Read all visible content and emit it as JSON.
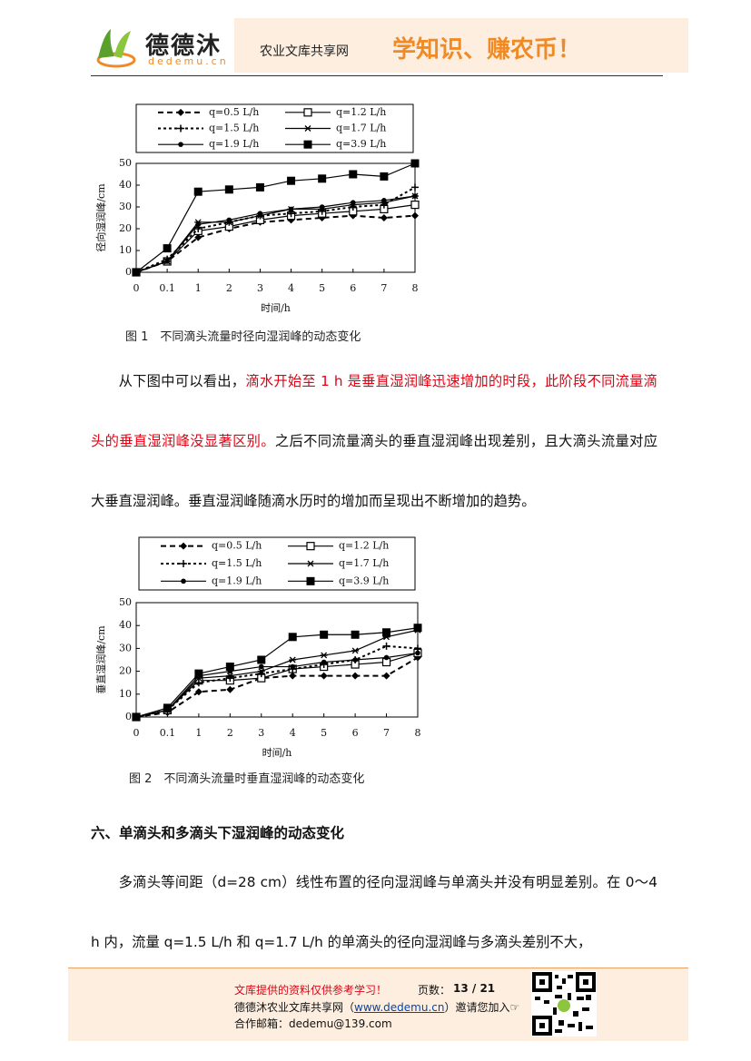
{
  "header": {
    "logo_text": "德德沐",
    "logo_domain": "dedemu.cn",
    "site_name": "农业文库共享网",
    "slogan": "学知识、赚农币！"
  },
  "chart_data": [
    {
      "type": "line",
      "y_label": "径向湿润峰/cm",
      "x_label": "时间/h",
      "categories": [
        "0",
        "0.1",
        "1",
        "2",
        "3",
        "4",
        "5",
        "6",
        "7",
        "8"
      ],
      "ylim": [
        0,
        50
      ],
      "yticks": [
        0,
        10,
        20,
        30,
        40,
        50
      ],
      "series": [
        {
          "name": "q=0.5 L/h",
          "color": "#000000",
          "dash": "dashed",
          "marker": "diamond",
          "values": [
            0,
            5,
            16,
            20,
            23,
            24,
            25,
            26,
            25,
            26
          ]
        },
        {
          "name": "q=1.2 L/h",
          "color": "#000000",
          "dash": "solid",
          "marker": "open-square",
          "values": [
            0,
            5,
            19,
            21,
            24,
            26,
            27,
            28,
            29,
            31
          ]
        },
        {
          "name": "q=1.5 L/h",
          "color": "#000000",
          "dash": "dotted",
          "marker": "plus",
          "values": [
            0,
            6,
            20,
            23,
            26,
            27,
            28,
            30,
            31,
            39
          ]
        },
        {
          "name": "q=1.7 L/h",
          "color": "#000000",
          "dash": "solid",
          "marker": "star",
          "values": [
            0,
            5,
            23,
            23,
            26,
            29,
            29,
            31,
            32,
            35
          ]
        },
        {
          "name": "q=1.9 L/h",
          "color": "#000000",
          "dash": "solid",
          "marker": "circle",
          "values": [
            0,
            5,
            22,
            24,
            27,
            29,
            30,
            32,
            33,
            35
          ]
        },
        {
          "name": "q=3.9 L/h",
          "color": "#000000",
          "dash": "solid",
          "marker": "filled-square",
          "values": [
            0,
            11,
            37,
            38,
            39,
            42,
            43,
            45,
            44,
            50
          ]
        }
      ]
    },
    {
      "type": "line",
      "y_label": "垂直湿润峰/cm",
      "x_label": "时间/h",
      "categories": [
        "0",
        "0.1",
        "1",
        "2",
        "3",
        "4",
        "5",
        "6",
        "7",
        "8"
      ],
      "ylim": [
        0,
        50
      ],
      "yticks": [
        0,
        10,
        20,
        30,
        40,
        50
      ],
      "series": [
        {
          "name": "q=0.5 L/h",
          "color": "#000000",
          "dash": "dashed",
          "marker": "diamond",
          "values": [
            0,
            2,
            11,
            12,
            17,
            18,
            18,
            18,
            18,
            26
          ]
        },
        {
          "name": "q=1.2 L/h",
          "color": "#000000",
          "dash": "solid",
          "marker": "open-square",
          "values": [
            0,
            3,
            16,
            16,
            17,
            21,
            22,
            23,
            24,
            28
          ]
        },
        {
          "name": "q=1.5 L/h",
          "color": "#000000",
          "dash": "dotted",
          "marker": "plus",
          "values": [
            0,
            3,
            15,
            17,
            19,
            21,
            23,
            25,
            31,
            30
          ]
        },
        {
          "name": "q=1.7 L/h",
          "color": "#000000",
          "dash": "solid",
          "marker": "star",
          "values": [
            0,
            3,
            17,
            18,
            20,
            25,
            27,
            29,
            35,
            38
          ]
        },
        {
          "name": "q=1.9 L/h",
          "color": "#000000",
          "dash": "solid",
          "marker": "circle",
          "values": [
            0,
            3,
            18,
            20,
            22,
            22,
            24,
            25,
            26,
            28
          ]
        },
        {
          "name": "q=3.9 L/h",
          "color": "#000000",
          "dash": "solid",
          "marker": "filled-square",
          "values": [
            0,
            4,
            19,
            22,
            25,
            35,
            36,
            36,
            37,
            39
          ]
        }
      ]
    }
  ],
  "document": {
    "caption1": "图 1　不同滴头流量时径向湿润峰的动态变化",
    "para1": {
      "start": "从下图中可以看出，",
      "highlight": "滴水开始至 1 h 是垂直湿润峰迅速增加的时段，此阶段不同流量滴头的垂直湿润峰没显著区别。",
      "rest": "之后不同流量滴头的垂直湿润峰出现差别，且大滴头流量对应大垂直湿润峰。垂直湿润峰随滴水历时的增加而呈现出不断增加的趋势。"
    },
    "caption2": "图 2　不同滴头流量时垂直湿润峰的动态变化",
    "heading": "六、单滴头和多滴头下湿润峰的动态变化",
    "para2": "多滴头等间距（d=28 cm）线性布置的径向湿润峰与单滴头并没有明显差别。在 0～4 h 内，流量 q=1.5 L/h 和 q=1.7 L/h 的单滴头的径向湿润峰与多滴头差别不大，"
  },
  "footer": {
    "notice": "文库提供的资料仅供参考学习！",
    "pages_label": "页数：",
    "pages": "13 / 21",
    "invite_before": "德德沐农业文库共享网（",
    "link": "www.dedemu.cn",
    "invite_after": "）邀请您加入☞",
    "email": "合作邮箱：dedemu@139.com"
  }
}
